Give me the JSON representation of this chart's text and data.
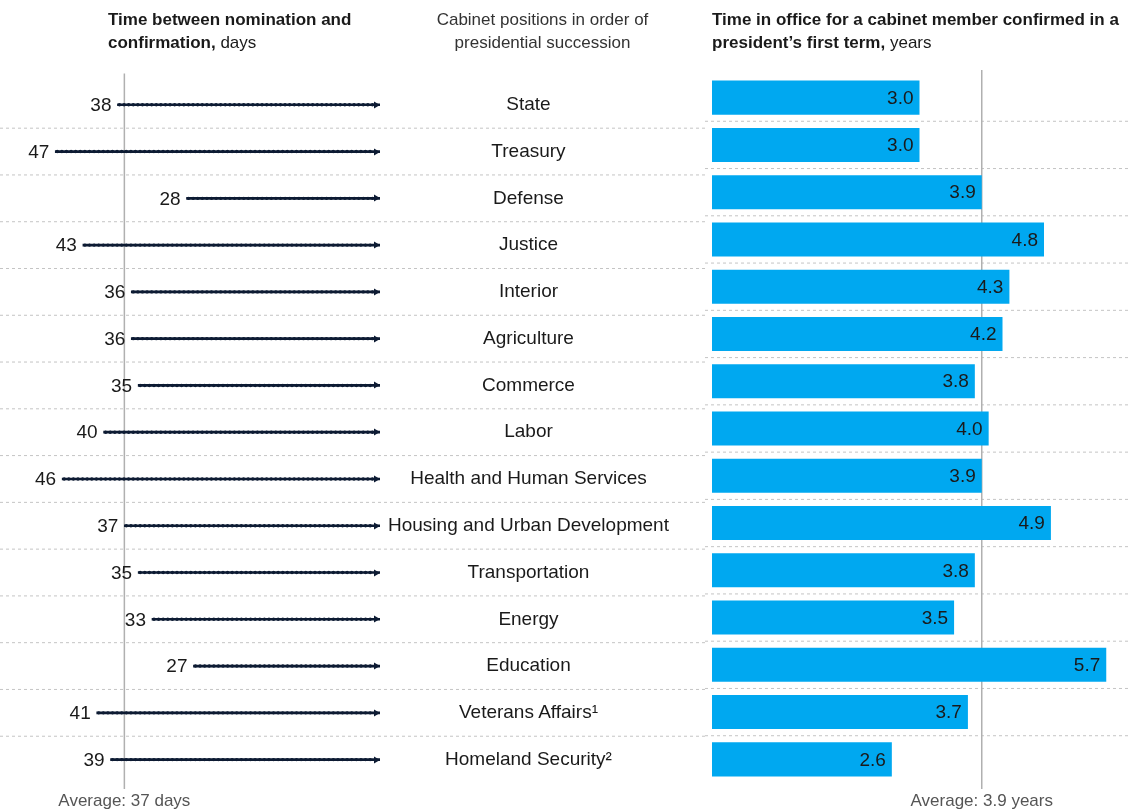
{
  "chart_data": [
    {
      "type": "bar",
      "orientation": "horizontal",
      "title": "Time between nomination and confirmation,",
      "xlabel": "days",
      "ylabel": "Cabinet positions in order of presidential succession",
      "categories": [
        "State",
        "Treasury",
        "Defense",
        "Justice",
        "Interior",
        "Agriculture",
        "Commerce",
        "Labor",
        "Health and Human Services",
        "Housing and Urban Development",
        "Transportation",
        "Energy",
        "Education",
        "Veterans Affairs¹",
        "Homeland Security²"
      ],
      "values": [
        38,
        47,
        28,
        43,
        36,
        36,
        35,
        40,
        46,
        37,
        35,
        33,
        27,
        41,
        39
      ],
      "color": "#0d1b33",
      "line_style": "dotted",
      "data_labels": true,
      "xlim": [
        55,
        0
      ],
      "tick_labels": "y",
      "grid": "y",
      "ref_lines": [
        {
          "axis": "x",
          "value": 37,
          "label": "Average: 37 days",
          "color": "#b0b0b0"
        }
      ]
    },
    {
      "type": "bar",
      "orientation": "horizontal",
      "title": "Time in office for a cabinet member confirmed in a president’s first term,",
      "xlabel": "years",
      "categories": [
        null,
        null,
        null,
        null,
        null,
        null,
        null,
        null,
        null,
        null,
        null,
        null,
        null,
        null,
        null
      ],
      "values": [
        3.0,
        3.0,
        3.9,
        4.8,
        4.3,
        4.2,
        3.8,
        4.0,
        3.9,
        4.9,
        3.8,
        3.5,
        5.7,
        3.7,
        2.6
      ],
      "value_labels": [
        "3.0",
        "3.0",
        "3.9",
        "4.8",
        "4.3",
        "4.2",
        "3.8",
        "4.0",
        "3.9",
        "4.9",
        "3.8",
        "3.5",
        "5.7",
        "3.7",
        "2.6"
      ],
      "color": "#00a8f0",
      "tick_labels": false,
      "grid": "y",
      "ref_lines": [
        {
          "axis": "x",
          "value": 3.9,
          "label": "Average: 3.9 years",
          "color": "#b0b0b0"
        }
      ]
    }
  ]
}
